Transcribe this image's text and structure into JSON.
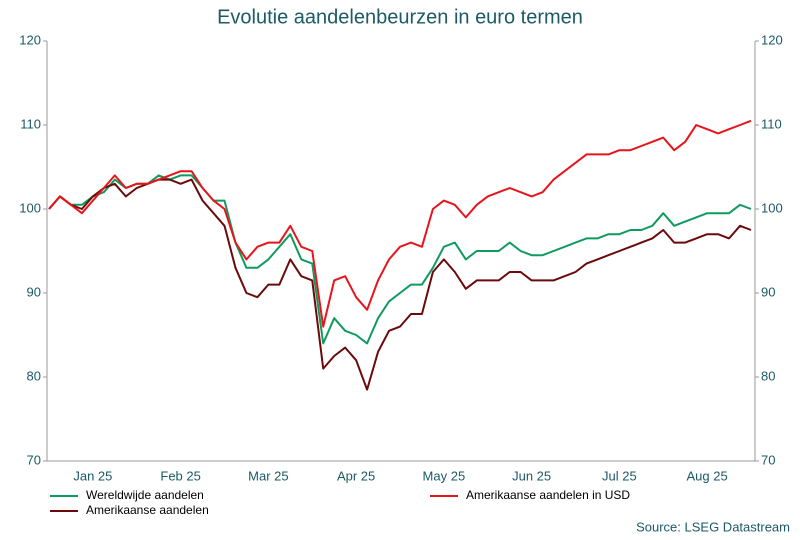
{
  "chart_data": {
    "type": "line",
    "title": "Evolutie aandelenbeurzen in euro termen",
    "source": "Source: LSEG Datastream",
    "categories": [
      null,
      null,
      null,
      null,
      "Jan 25",
      null,
      null,
      null,
      null,
      null,
      null,
      null,
      "Feb 25",
      null,
      null,
      null,
      null,
      null,
      null,
      null,
      "Mar 25",
      null,
      null,
      null,
      null,
      null,
      null,
      null,
      "Apr 25",
      null,
      null,
      null,
      null,
      null,
      null,
      null,
      "May 25",
      null,
      null,
      null,
      null,
      null,
      null,
      null,
      "Jun 25",
      null,
      null,
      null,
      null,
      null,
      null,
      null,
      "Jul 25",
      null,
      null,
      null,
      null,
      null,
      null,
      null,
      "Aug 25",
      null,
      null,
      null,
      null
    ],
    "series": [
      {
        "name": "Wereldwijde aandelen",
        "color": "#0f9b5f",
        "values": [
          100,
          101.5,
          100.5,
          100.5,
          101.5,
          102,
          103.5,
          102.5,
          103,
          103,
          104,
          103.5,
          104,
          104,
          102.5,
          101,
          101,
          96,
          93,
          93,
          94,
          95.5,
          97,
          94,
          93.5,
          84,
          87,
          85.5,
          85,
          84,
          87,
          89,
          90,
          91,
          91,
          93,
          95.5,
          96,
          94,
          95,
          95,
          95,
          96,
          95,
          94.5,
          94.5,
          95,
          95.5,
          96,
          96.5,
          96.5,
          97,
          97,
          97.5,
          97.5,
          98,
          99.5,
          98,
          98.5,
          99,
          99.5,
          99.5,
          99.5,
          100.5,
          100
        ]
      },
      {
        "name": "Amerikaanse aandelen",
        "color": "#6b0a0a",
        "values": [
          100,
          101.5,
          100.5,
          100,
          101.5,
          102.5,
          103,
          101.5,
          102.5,
          103,
          103.5,
          103.5,
          103,
          103.5,
          101,
          99.5,
          98,
          93,
          90,
          89.5,
          91,
          91,
          94,
          92,
          91.5,
          81,
          82.5,
          83.5,
          82,
          78.5,
          83,
          85.5,
          86,
          87.5,
          87.5,
          92.5,
          94,
          92.5,
          90.5,
          91.5,
          91.5,
          91.5,
          92.5,
          92.5,
          91.5,
          91.5,
          91.5,
          92,
          92.5,
          93.5,
          94,
          94.5,
          95,
          95.5,
          96,
          96.5,
          97.5,
          96,
          96,
          96.5,
          97,
          97,
          96.5,
          98,
          97.5
        ]
      },
      {
        "name": "Amerikaanse aandelen in USD",
        "color": "#e8141b",
        "values": [
          100,
          101.5,
          100.5,
          99.5,
          101,
          102.5,
          104,
          102.5,
          103,
          103,
          103.5,
          104,
          104.5,
          104.5,
          102.5,
          101,
          100,
          96,
          94,
          95.5,
          96,
          96,
          98,
          95.5,
          95,
          86,
          91.5,
          92,
          89.5,
          88,
          91.5,
          94,
          95.5,
          96,
          95.5,
          100,
          101,
          100.5,
          99,
          100.5,
          101.5,
          102,
          102.5,
          102,
          101.5,
          102,
          103.5,
          104.5,
          105.5,
          106.5,
          106.5,
          106.5,
          107,
          107,
          107.5,
          108,
          108.5,
          107,
          108,
          110,
          109.5,
          109,
          109.5,
          110,
          110.5
        ]
      }
    ],
    "ylim": [
      70,
      120
    ],
    "yticks": [
      70,
      80,
      90,
      100,
      110,
      120
    ],
    "y2lim": [
      70,
      120
    ],
    "y2ticks": [
      70,
      80,
      90,
      100,
      110,
      120
    ]
  }
}
